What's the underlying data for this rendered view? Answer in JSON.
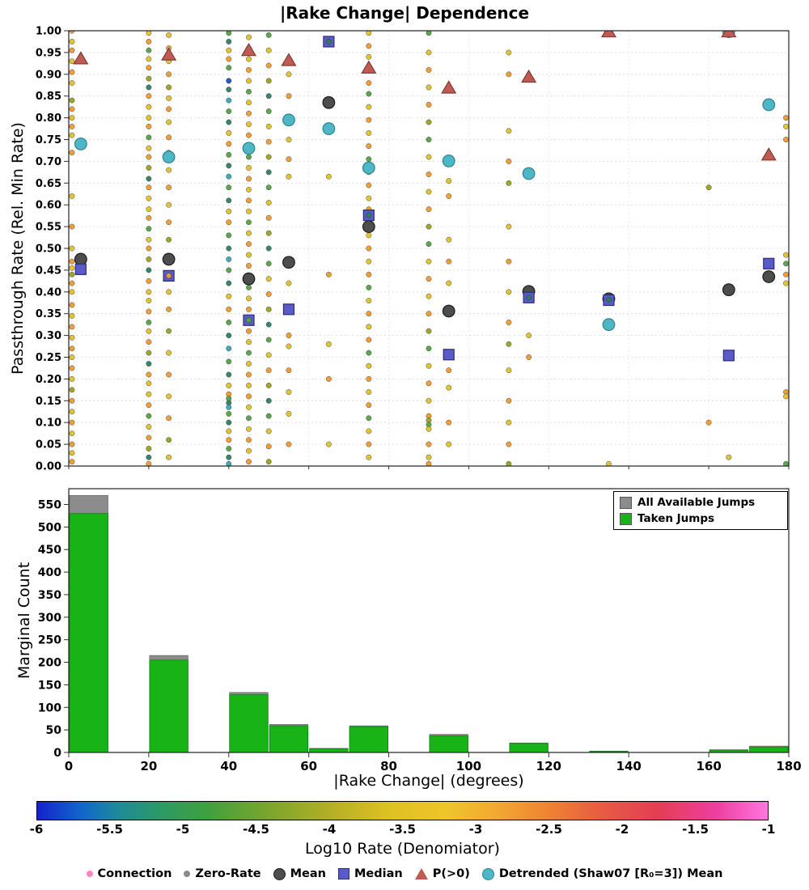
{
  "figure": {
    "title": "|Rake Change| Dependence"
  },
  "palette": {
    "y": "#e0c128",
    "o": "#ef9a2d",
    "g": "#55a047",
    "d": "#2e7d62",
    "t": "#3aa6b0",
    "b": "#2b55c8",
    "v": "#9aa21f"
  },
  "chart_data": [
    {
      "id": "passthrough_scatter",
      "type": "scatter",
      "ylabel": "Passthrough Rate (Rel. Min Rate)",
      "xlim": [
        0,
        180
      ],
      "ylim": [
        0,
        1
      ],
      "grid": true,
      "yticklabels": [
        "0.00",
        "0.05",
        "0.10",
        "0.15",
        "0.20",
        "0.25",
        "0.30",
        "0.35",
        "0.40",
        "0.45",
        "0.50",
        "0.55",
        "0.60",
        "0.65",
        "0.70",
        "0.75",
        "0.80",
        "0.85",
        "0.90",
        "0.95",
        "1.00"
      ],
      "dot_columns": [
        {
          "x": 0.8,
          "c": "oyoyoyvoyoy",
          "ys": [
            1.0,
            0.975,
            0.955,
            0.93,
            0.905,
            0.88,
            0.84,
            0.82,
            0.8,
            0.78,
            0.76,
            0.72,
            0.62,
            0.55,
            0.5,
            0.47,
            0.455,
            0.44,
            0.42,
            0.4,
            0.37,
            0.345,
            0.32,
            0.295,
            0.27,
            0.25,
            0.225,
            0.2,
            0.175,
            0.15,
            0.125,
            0.1,
            0.075,
            0.05,
            0.03,
            0.01
          ]
        },
        {
          "x": 20,
          "c": "yogyovdoy",
          "ys": [
            0.995,
            0.975,
            0.955,
            0.935,
            0.915,
            0.89,
            0.87,
            0.85,
            0.825,
            0.8,
            0.78,
            0.755,
            0.73,
            0.71,
            0.685,
            0.66,
            0.64,
            0.615,
            0.59,
            0.57,
            0.545,
            0.52,
            0.5,
            0.475,
            0.45,
            0.425,
            0.4,
            0.38,
            0.355,
            0.33,
            0.31,
            0.285,
            0.26,
            0.235,
            0.21,
            0.19,
            0.165,
            0.14,
            0.115,
            0.09,
            0.065,
            0.04,
            0.02,
            0.005
          ]
        },
        {
          "x": 25,
          "c": "yoyov",
          "ys": [
            0.99,
            0.96,
            0.93,
            0.9,
            0.87,
            0.845,
            0.82,
            0.79,
            0.755,
            0.72,
            0.68,
            0.64,
            0.6,
            0.56,
            0.52,
            0.48,
            0.44,
            0.4,
            0.36,
            0.31,
            0.26,
            0.21,
            0.16,
            0.11,
            0.06,
            0.02
          ]
        },
        {
          "x": 40,
          "c": "gdyogdt",
          "ys": [
            0.995,
            0.975,
            0.955,
            0.935,
            0.915,
            0.865,
            0.84,
            0.815,
            0.79,
            0.765,
            0.74,
            0.715,
            0.69,
            0.665,
            0.64,
            0.61,
            0.585,
            0.56,
            0.53,
            0.5,
            0.475,
            0.45,
            0.42,
            0.39,
            0.36,
            0.33,
            0.3,
            0.27,
            0.24,
            0.21,
            0.185,
            0.165,
            0.155,
            0.145,
            0.135,
            0.12,
            0.1,
            0.08,
            0.06,
            0.04,
            0.02,
            0.005
          ]
        },
        {
          "x": 45,
          "c": "yoyoyg",
          "ys": [
            0.985,
            0.96,
            0.935,
            0.91,
            0.885,
            0.86,
            0.835,
            0.81,
            0.785,
            0.76,
            0.735,
            0.71,
            0.685,
            0.66,
            0.635,
            0.61,
            0.585,
            0.56,
            0.535,
            0.51,
            0.485,
            0.46,
            0.435,
            0.41,
            0.385,
            0.36,
            0.335,
            0.31,
            0.285,
            0.26,
            0.235,
            0.21,
            0.185,
            0.16,
            0.135,
            0.11,
            0.085,
            0.06,
            0.035,
            0.01
          ]
        },
        {
          "x": 50,
          "c": "gyovd",
          "ys": [
            0.99,
            0.955,
            0.92,
            0.885,
            0.85,
            0.815,
            0.78,
            0.745,
            0.71,
            0.675,
            0.64,
            0.605,
            0.57,
            0.535,
            0.5,
            0.465,
            0.43,
            0.395,
            0.36,
            0.325,
            0.29,
            0.255,
            0.22,
            0.185,
            0.15,
            0.115,
            0.08,
            0.045,
            0.01
          ]
        },
        {
          "x": 55,
          "c": "yoyoy",
          "ys": [
            0.9,
            0.85,
            0.75,
            0.705,
            0.665,
            0.42,
            0.3,
            0.275,
            0.22,
            0.17,
            0.12,
            0.05
          ]
        },
        {
          "x": 65,
          "c": "yoyoy",
          "ys": [
            0.665,
            0.44,
            0.28,
            0.2,
            0.05
          ]
        },
        {
          "x": 75,
          "c": "yoyog",
          "ys": [
            0.995,
            0.965,
            0.94,
            0.88,
            0.855,
            0.825,
            0.795,
            0.765,
            0.735,
            0.705,
            0.675,
            0.645,
            0.615,
            0.59,
            0.56,
            0.53,
            0.5,
            0.47,
            0.44,
            0.41,
            0.38,
            0.35,
            0.32,
            0.29,
            0.26,
            0.23,
            0.2,
            0.17,
            0.14,
            0.11,
            0.08,
            0.05,
            0.02
          ]
        },
        {
          "x": 90,
          "c": "gyoyov",
          "ys": [
            0.995,
            0.95,
            0.91,
            0.87,
            0.83,
            0.79,
            0.75,
            0.71,
            0.67,
            0.63,
            0.59,
            0.55,
            0.51,
            0.47,
            0.43,
            0.39,
            0.35,
            0.31,
            0.27,
            0.23,
            0.19,
            0.15,
            0.115,
            0.105,
            0.095,
            0.085,
            0.05,
            0.02,
            0.005
          ]
        },
        {
          "x": 95,
          "c": "yoyo",
          "ys": [
            0.655,
            0.62,
            0.52,
            0.47,
            0.42,
            0.22,
            0.18,
            0.1,
            0.05
          ]
        },
        {
          "x": 110,
          "c": "yoyov",
          "ys": [
            0.95,
            0.9,
            0.77,
            0.7,
            0.65,
            0.55,
            0.47,
            0.4,
            0.33,
            0.28,
            0.22,
            0.15,
            0.1,
            0.05,
            0.005
          ]
        },
        {
          "x": 115,
          "c": "yo",
          "ys": [
            0.3,
            0.25
          ]
        },
        {
          "x": 135,
          "c": "y",
          "ys": [
            0.005
          ]
        },
        {
          "x": 160,
          "c": "vo",
          "ys": [
            0.64,
            0.1
          ]
        },
        {
          "x": 165,
          "c": "gy",
          "ys": [
            0.26,
            0.02
          ]
        },
        {
          "x": 179.3,
          "c": "oyoyg",
          "ys": [
            0.8,
            0.78,
            0.75,
            0.485,
            0.465,
            0.44,
            0.42,
            0.17,
            0.16,
            0.005
          ]
        }
      ],
      "extra_dots": [
        [
          40,
          0.885,
          "b"
        ],
        [
          25,
          0.437,
          "o"
        ],
        [
          45,
          0.335,
          "g"
        ],
        [
          65,
          0.975,
          "d"
        ],
        [
          75,
          0.576,
          "d"
        ],
        [
          115,
          0.387,
          "d"
        ],
        [
          135,
          0.382,
          "d"
        ]
      ],
      "series": [
        {
          "name": "Mean",
          "marker": "circle",
          "color": "#4d4d4d",
          "edge": "#1a1a1a",
          "points": [
            [
              3,
              0.475
            ],
            [
              25,
              0.475
            ],
            [
              45,
              0.43
            ],
            [
              55,
              0.468
            ],
            [
              65,
              0.835
            ],
            [
              75,
              0.55
            ],
            [
              95,
              0.356
            ],
            [
              115,
              0.401
            ],
            [
              135,
              0.384
            ],
            [
              165,
              0.405
            ],
            [
              175,
              0.435
            ]
          ]
        },
        {
          "name": "Median",
          "marker": "square",
          "color": "#5a5bc7",
          "edge": "#2c2d7a",
          "points": [
            [
              3,
              0.452
            ],
            [
              25,
              0.437
            ],
            [
              45,
              0.335
            ],
            [
              55,
              0.36
            ],
            [
              65,
              0.975
            ],
            [
              75,
              0.576
            ],
            [
              95,
              0.256
            ],
            [
              115,
              0.387
            ],
            [
              135,
              0.381
            ],
            [
              165,
              0.254
            ],
            [
              175,
              0.465
            ]
          ]
        },
        {
          "name": "P(>0)",
          "marker": "triangle",
          "color": "#bf5b52",
          "edge": "#7e3a33",
          "points": [
            [
              3,
              0.936
            ],
            [
              25,
              0.945
            ],
            [
              45,
              0.955
            ],
            [
              55,
              0.932
            ],
            [
              75,
              0.915
            ],
            [
              95,
              0.869
            ],
            [
              115,
              0.894
            ],
            [
              135,
              0.998
            ],
            [
              165,
              0.998
            ],
            [
              175,
              0.715
            ]
          ]
        },
        {
          "name": "Detrended (Shaw07 [R₀=3]) Mean",
          "marker": "circle",
          "color": "#4db7c6",
          "edge": "#2e8191",
          "points": [
            [
              3,
              0.74
            ],
            [
              25,
              0.71
            ],
            [
              45,
              0.73
            ],
            [
              55,
              0.795
            ],
            [
              65,
              0.775
            ],
            [
              75,
              0.685
            ],
            [
              95,
              0.701
            ],
            [
              115,
              0.672
            ],
            [
              135,
              0.325
            ],
            [
              165,
              0.998
            ],
            [
              175,
              0.83
            ]
          ]
        }
      ]
    },
    {
      "id": "marginal_hist",
      "type": "bar",
      "ylabel": "Marginal Count",
      "xlabel": "|Rake Change| (degrees)",
      "xlim": [
        0,
        180
      ],
      "ylim": [
        0,
        585
      ],
      "yticklabels": [
        "0",
        "50",
        "100",
        "150",
        "200",
        "250",
        "300",
        "350",
        "400",
        "450",
        "500",
        "550"
      ],
      "xticklabels": [
        "0",
        "20",
        "40",
        "60",
        "80",
        "100",
        "120",
        "140",
        "160",
        "180"
      ],
      "legend": [
        {
          "label": "All Available Jumps",
          "color": "#8c8c8c"
        },
        {
          "label": "Taken Jumps",
          "color": "#17b317"
        }
      ],
      "bars": [
        {
          "x0": 0,
          "x1": 10,
          "total": 570,
          "taken": 530
        },
        {
          "x0": 20,
          "x1": 30,
          "total": 215,
          "taken": 205
        },
        {
          "x0": 40,
          "x1": 50,
          "total": 133,
          "taken": 128
        },
        {
          "x0": 50,
          "x1": 60,
          "total": 62,
          "taken": 59
        },
        {
          "x0": 60,
          "x1": 70,
          "total": 9,
          "taken": 8
        },
        {
          "x0": 70,
          "x1": 80,
          "total": 59,
          "taken": 57
        },
        {
          "x0": 90,
          "x1": 100,
          "total": 40,
          "taken": 37
        },
        {
          "x0": 110,
          "x1": 120,
          "total": 21,
          "taken": 20
        },
        {
          "x0": 130,
          "x1": 140,
          "total": 3,
          "taken": 2
        },
        {
          "x0": 160,
          "x1": 170,
          "total": 6,
          "taken": 5
        },
        {
          "x0": 170,
          "x1": 180,
          "total": 14,
          "taken": 12
        }
      ]
    },
    {
      "id": "colorbar",
      "type": "colorbar",
      "label": "Log10 Rate (Denomiator)",
      "range": [
        -6,
        -1
      ],
      "ticks": [
        "-6",
        "-5.5",
        "-5",
        "-4.5",
        "-4",
        "-3.5",
        "-3",
        "-2.5",
        "-2",
        "-1.5",
        "-1"
      ],
      "stops": [
        [
          "#1522cc",
          0
        ],
        [
          "#1166cc",
          6
        ],
        [
          "#1d8a99",
          11
        ],
        [
          "#2d9a66",
          17
        ],
        [
          "#3f9f3f",
          23
        ],
        [
          "#76a52e",
          31
        ],
        [
          "#b3af24",
          40
        ],
        [
          "#ddc122",
          48
        ],
        [
          "#eec629",
          56
        ],
        [
          "#f2a832",
          63
        ],
        [
          "#ef8333",
          70
        ],
        [
          "#e85c43",
          77
        ],
        [
          "#e43d55",
          85
        ],
        [
          "#ee3fa0",
          93
        ],
        [
          "#ff77e0",
          100
        ]
      ]
    }
  ],
  "legend_bottom": {
    "items": [
      {
        "id": "connection",
        "label": "Connection",
        "shape": "dot",
        "color": "#ff85c2"
      },
      {
        "id": "zero-rate",
        "label": "Zero-Rate",
        "shape": "dot",
        "color": "#8a8a8a"
      },
      {
        "id": "mean",
        "label": "Mean",
        "shape": "circle",
        "color": "#4d4d4d",
        "edge": "#1a1a1a"
      },
      {
        "id": "median",
        "label": "Median",
        "shape": "square",
        "color": "#5a5bc7",
        "edge": "#2c2d7a"
      },
      {
        "id": "p-gt-0",
        "label": "P(>0)",
        "shape": "triangle",
        "color": "#bf5b52"
      },
      {
        "id": "detrended",
        "label": "Detrended (Shaw07 [R₀=3]) Mean",
        "shape": "circle",
        "color": "#4db7c6",
        "edge": "#2e8191"
      }
    ]
  }
}
